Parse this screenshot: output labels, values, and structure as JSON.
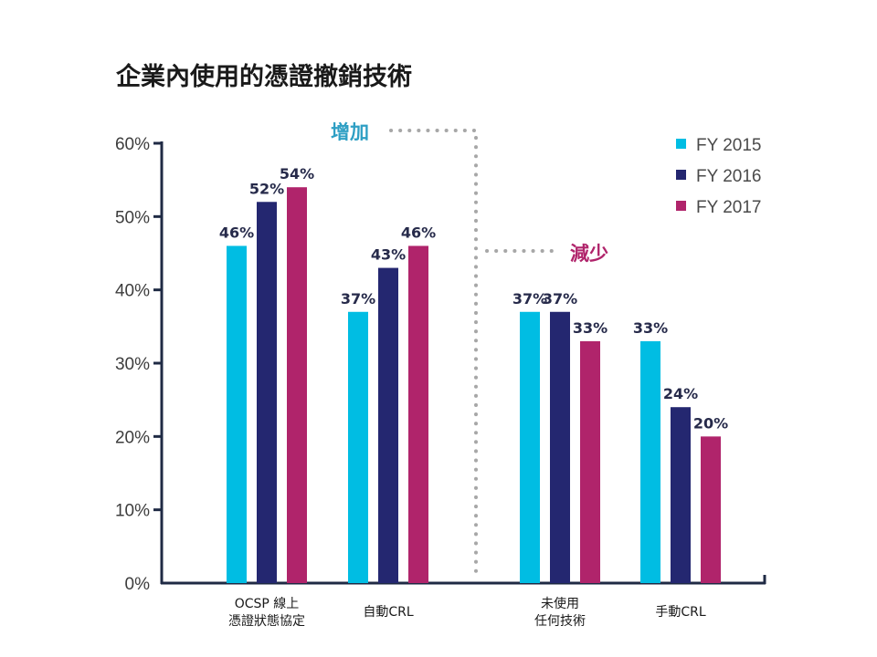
{
  "title": "企業內使用的憑證撤銷技術",
  "annotations": {
    "increase": {
      "text": "增加",
      "color": "#2e9fc4"
    },
    "decrease": {
      "text": "減少",
      "color": "#b0246b"
    }
  },
  "chart_data": {
    "type": "bar",
    "title": "企業內使用的憑證撤銷技術",
    "categories": [
      "OCSP 線上\n憑證狀態協定",
      "自動CRL",
      "未使用\n任何技術",
      "手動CRL"
    ],
    "series": [
      {
        "name": "FY 2015",
        "color": "#00bde3",
        "values": [
          46,
          37,
          37,
          33
        ]
      },
      {
        "name": "FY 2016",
        "color": "#242770",
        "values": [
          52,
          43,
          37,
          24
        ]
      },
      {
        "name": "FY 2017",
        "color": "#b0246b",
        "values": [
          54,
          46,
          33,
          20
        ]
      }
    ],
    "y_ticks": [
      "0%",
      "10%",
      "20%",
      "30%",
      "40%",
      "50%",
      "60%"
    ],
    "ylim": [
      0,
      60
    ],
    "data_label_suffix": "%",
    "legend_position": "top-right",
    "grid": false
  }
}
